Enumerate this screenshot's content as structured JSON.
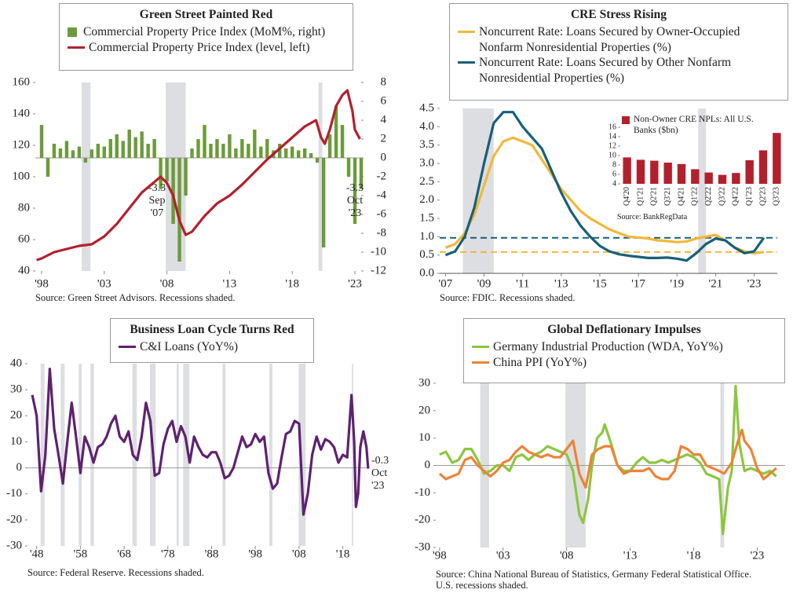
{
  "chart_data": [
    {
      "type": "combo",
      "title": "Green Street Painted Red",
      "xlim": [
        1997.5,
        2023.5
      ],
      "xticks": [
        {
          "value": 1998,
          "label": "'98"
        },
        {
          "value": 2003,
          "label": "'03"
        },
        {
          "value": 2008,
          "label": "'08"
        },
        {
          "value": 2013,
          "label": "'13"
        },
        {
          "value": 2018,
          "label": "'18"
        },
        {
          "value": 2023,
          "label": "'23"
        }
      ],
      "ylim": [
        40,
        160
      ],
      "yticks": [
        40,
        60,
        80,
        100,
        120,
        140,
        160
      ],
      "y2lim": [
        -12,
        8
      ],
      "y2ticks": [
        -12,
        -10,
        -8,
        -6,
        -4,
        -2,
        0,
        2,
        4,
        6,
        8
      ],
      "shaded_ranges": [
        [
          2001.2,
          2001.9
        ],
        [
          2007.9,
          2009.5
        ],
        [
          2020.1,
          2020.4
        ]
      ],
      "series": [
        {
          "name": "Commercial Property Price Index (MoM%, right)",
          "type": "bar",
          "axis": "y2",
          "color": "#6b9b3a",
          "x": [
            1998,
            1998.5,
            1999,
            1999.5,
            2000,
            2000.5,
            2001,
            2001.5,
            2002,
            2002.5,
            2003,
            2003.5,
            2004,
            2004.5,
            2005,
            2005.5,
            2006,
            2006.5,
            2007,
            2007.5,
            2008,
            2008.5,
            2009,
            2009.5,
            2010,
            2010.5,
            2011,
            2011.5,
            2012,
            2012.5,
            2013,
            2013.5,
            2014,
            2014.5,
            2015,
            2015.5,
            2016,
            2016.5,
            2017,
            2017.5,
            2018,
            2018.5,
            2019,
            2019.5,
            2020,
            2020.5,
            2021,
            2021.5,
            2022,
            2022.5,
            2023,
            2023.5
          ],
          "values": [
            3.5,
            -2,
            1.5,
            1,
            1.8,
            0.8,
            1.2,
            -0.5,
            0.9,
            1.5,
            1.2,
            2,
            2.5,
            1.8,
            3,
            2.2,
            2.8,
            1.5,
            2,
            -3.3,
            -2.5,
            -7,
            -11,
            -4,
            1,
            2,
            3.5,
            1.5,
            2,
            1.5,
            2.5,
            1,
            2,
            1.5,
            3,
            1.2,
            2,
            0.8,
            1.5,
            1,
            1.2,
            0.8,
            1,
            0.5,
            -0.5,
            -9.5,
            2.5,
            5.5,
            3.5,
            -2,
            -7,
            -3.3
          ]
        },
        {
          "name": "Commercial Property Price Index (level, left)",
          "type": "line",
          "color": "#b3202d",
          "x": [
            1997.6,
            1998,
            1999,
            2000,
            2001,
            2002,
            2003,
            2004,
            2005,
            2006,
            2007.5,
            2008,
            2008.5,
            2009,
            2009.5,
            2010,
            2011,
            2012,
            2013,
            2014,
            2015,
            2016,
            2017,
            2018,
            2019,
            2019.9,
            2020.3,
            2020.6,
            2021,
            2021.5,
            2022,
            2022.4,
            2022.8,
            2023,
            2023.4
          ],
          "values": [
            47,
            48,
            52,
            54,
            56,
            57,
            62,
            70,
            80,
            90,
            100,
            96,
            88,
            72,
            63,
            65,
            75,
            83,
            88,
            95,
            103,
            111,
            118,
            125,
            132,
            136,
            125,
            121,
            130,
            145,
            152,
            155,
            142,
            130,
            124
          ]
        }
      ],
      "annotations": [
        [
          "-3.3",
          "Sep",
          "'07"
        ],
        [
          "-3.3",
          "Oct",
          "'23"
        ]
      ],
      "source": [
        "Source: Green Street Advisors. Recessions shaded."
      ]
    },
    {
      "type": "line",
      "title": "CRE Stress Rising",
      "xlim": [
        2006.7,
        2024.2
      ],
      "xticks": [
        {
          "value": 2007,
          "label": "'07"
        },
        {
          "value": 2009,
          "label": "'09"
        },
        {
          "value": 2011,
          "label": "'11"
        },
        {
          "value": 2013,
          "label": "'13"
        },
        {
          "value": 2015,
          "label": "'15"
        },
        {
          "value": 2017,
          "label": "'17"
        },
        {
          "value": 2019,
          "label": "'19"
        },
        {
          "value": 2021,
          "label": "'21"
        },
        {
          "value": 2023,
          "label": "'23"
        }
      ],
      "ylim": [
        0,
        4.5
      ],
      "yticks": [
        {
          "value": 0,
          "label": "0.0"
        },
        0.5,
        {
          "value": 1,
          "label": "1.0"
        },
        1.5,
        {
          "value": 2,
          "label": "2.0"
        },
        2.5,
        {
          "value": 3,
          "label": "3.0"
        },
        3.5,
        {
          "value": 4,
          "label": "4.0"
        },
        4.5
      ],
      "shaded_ranges": [
        [
          2007.9,
          2009.5
        ],
        [
          2020.1,
          2020.5
        ]
      ],
      "reference_lines": [
        {
          "value": 0.97,
          "color": "#17607a"
        },
        {
          "value": 0.58,
          "color": "#f2b83a"
        }
      ],
      "x": [
        2007,
        2007.5,
        2008,
        2008.5,
        2009,
        2009.5,
        2010,
        2010.5,
        2011,
        2011.5,
        2012,
        2012.5,
        2013,
        2013.5,
        2014,
        2014.5,
        2015,
        2015.5,
        2016,
        2016.5,
        2017,
        2017.5,
        2018,
        2018.5,
        2019,
        2019.5,
        2020,
        2020.5,
        2021,
        2021.5,
        2022,
        2022.5,
        2023,
        2023.5
      ],
      "series": [
        {
          "name": "Noncurrent Rate: Loans Secured by Owner-Occupied Nonfarm Nonresidential Properties (%)",
          "color": "#f2b83a",
          "values": [
            0.7,
            0.8,
            1.1,
            1.6,
            2.4,
            3.2,
            3.6,
            3.7,
            3.6,
            3.5,
            3.1,
            2.7,
            2.3,
            2.0,
            1.7,
            1.5,
            1.35,
            1.2,
            1.1,
            1.0,
            0.98,
            0.95,
            0.9,
            0.88,
            0.85,
            0.87,
            0.95,
            1.0,
            1.05,
            0.9,
            0.7,
            0.6,
            0.55,
            0.58
          ]
        },
        {
          "name": "Noncurrent Rate: Loans Secured by Other Nonfarm Nonresidential Properties (%)",
          "color": "#17607a",
          "values": [
            0.5,
            0.6,
            1.0,
            1.8,
            3.0,
            4.1,
            4.4,
            4.4,
            4.0,
            3.7,
            3.4,
            2.8,
            2.2,
            1.7,
            1.3,
            1.0,
            0.75,
            0.6,
            0.52,
            0.48,
            0.45,
            0.42,
            0.42,
            0.43,
            0.4,
            0.35,
            0.55,
            0.8,
            0.95,
            0.9,
            0.7,
            0.55,
            0.6,
            0.97
          ]
        }
      ],
      "source": [
        "Source: FDIC. Recessions shaded."
      ]
    },
    {
      "type": "bar",
      "categories": [
        "Q4'20",
        "Q1'21",
        "Q2'21",
        "Q3'21",
        "Q4'21",
        "Q1'22",
        "Q2'22",
        "Q3'22",
        "Q4'22",
        "Q1'23",
        "Q2'23",
        "Q3'23"
      ],
      "ylim": [
        4,
        16
      ],
      "yticks": [
        4,
        6,
        8,
        10,
        12,
        14,
        16
      ],
      "series": [
        {
          "name": "Non-Owner CRE NPLs: All U.S. Banks ($bn)",
          "color": "#b3202d",
          "values": [
            9.6,
            9.1,
            8.9,
            8.5,
            8.2,
            7.1,
            6.4,
            5.9,
            6.3,
            9.0,
            11.1,
            14.8
          ]
        }
      ],
      "source": [
        "Source: BankRegData"
      ]
    },
    {
      "type": "line",
      "title": "Business Loan Cycle Turns Red",
      "xlim": [
        1945.9,
        2024
      ],
      "xticks": [
        {
          "value": 1948,
          "label": "'48"
        },
        {
          "value": 1958,
          "label": "'58"
        },
        {
          "value": 1968,
          "label": "'68"
        },
        {
          "value": 1978,
          "label": "'78"
        },
        {
          "value": 1988,
          "label": "'88"
        },
        {
          "value": 1998,
          "label": "'98"
        },
        {
          "value": 2008,
          "label": "'08"
        },
        {
          "value": 2018,
          "label": "'18"
        }
      ],
      "ylim": [
        -30,
        40
      ],
      "yticks": [
        -30,
        -20,
        -10,
        0,
        10,
        20,
        30,
        40
      ],
      "shaded_ranges": [
        [
          1948.9,
          1949.8
        ],
        [
          1953.5,
          1954.4
        ],
        [
          1957.6,
          1958.3
        ],
        [
          1960.3,
          1961.1
        ],
        [
          1969.9,
          1970.9
        ],
        [
          1973.9,
          1975.2
        ],
        [
          1980.0,
          1980.5
        ],
        [
          1981.5,
          1982.9
        ],
        [
          1990.5,
          1991.2
        ],
        [
          2001.2,
          2001.9
        ],
        [
          2007.9,
          2009.5
        ],
        [
          2020.1,
          2020.4
        ]
      ],
      "x": [
        1947,
        1948,
        1949,
        1950,
        1951,
        1952,
        1953,
        1954,
        1955,
        1956,
        1957,
        1958,
        1959,
        1960,
        1961,
        1962,
        1963,
        1964,
        1965,
        1966,
        1967,
        1968,
        1969,
        1970,
        1971,
        1972,
        1973,
        1974,
        1975,
        1976,
        1977,
        1978,
        1979,
        1980,
        1981,
        1982,
        1983,
        1984,
        1985,
        1986,
        1987,
        1988,
        1989,
        1990,
        1991,
        1992,
        1993,
        1994,
        1995,
        1996,
        1997,
        1998,
        1999,
        2000,
        2001,
        2002,
        2003,
        2004,
        2005,
        2006,
        2007,
        2008,
        2009,
        2010,
        2011,
        2012,
        2013,
        2014,
        2015,
        2016,
        2017,
        2018,
        2019,
        2020,
        2020.6,
        2021,
        2021.5,
        2022,
        2022.7,
        2023.4,
        2023.8
      ],
      "series": [
        {
          "name": "C&I Loans (YoY%)",
          "color": "#5e2170",
          "values": [
            28,
            20,
            -9,
            5,
            38,
            15,
            5,
            -6,
            10,
            25,
            12,
            -2,
            12,
            8,
            2,
            8,
            9,
            12,
            17,
            20,
            12,
            10,
            14,
            5,
            3,
            12,
            25,
            18,
            -3,
            -2,
            9,
            15,
            18,
            10,
            16,
            12,
            2,
            12,
            8,
            5,
            4,
            6,
            6,
            2,
            -4,
            -3,
            0,
            6,
            12,
            8,
            9,
            13,
            10,
            12,
            -2,
            -8,
            -6,
            4,
            13,
            14,
            18,
            17,
            -18,
            -10,
            5,
            12,
            7,
            11,
            10,
            8,
            2,
            5,
            4,
            28,
            10,
            -15,
            -10,
            8,
            14,
            8,
            -0.3
          ]
        }
      ],
      "annotations": [
        [
          "-0.3",
          "Oct",
          "'23"
        ]
      ],
      "source": [
        "Source: Federal Reserve. Recessions shaded."
      ]
    },
    {
      "type": "line",
      "title": "Global Deflationary Impulses",
      "xlim": [
        1997.7,
        2025.2
      ],
      "xticks": [
        {
          "value": 1998,
          "label": "'98"
        },
        {
          "value": 2003,
          "label": "'03"
        },
        {
          "value": 2008,
          "label": "'08"
        },
        {
          "value": 2013,
          "label": "'13"
        },
        {
          "value": 2018,
          "label": "'18"
        },
        {
          "value": 2023,
          "label": "'23"
        }
      ],
      "ylim": [
        -30,
        30
      ],
      "yticks": [
        -30,
        -20,
        -10,
        0,
        10,
        20,
        30
      ],
      "shaded_ranges": [
        [
          2001.2,
          2001.9
        ],
        [
          2007.9,
          2009.5
        ],
        [
          2020.1,
          2020.4
        ]
      ],
      "series": [
        {
          "name": "Germany Industrial Production (WDA, YoY%)",
          "color": "#8cc63f",
          "x": [
            1998,
            1998.5,
            1999,
            1999.5,
            2000,
            2000.5,
            2001,
            2001.5,
            2002,
            2002.5,
            2003,
            2003.5,
            2004,
            2004.5,
            2005,
            2005.5,
            2006,
            2006.5,
            2007,
            2007.5,
            2008,
            2008.5,
            2009,
            2009.3,
            2009.7,
            2010,
            2010.4,
            2010.8,
            2011,
            2011.5,
            2012,
            2012.5,
            2013,
            2013.5,
            2014,
            2014.5,
            2015,
            2015.5,
            2016,
            2016.5,
            2017,
            2017.5,
            2018,
            2018.5,
            2019,
            2019.5,
            2020,
            2020.3,
            2020.7,
            2021,
            2021.3,
            2021.6,
            2022,
            2022.5,
            2023,
            2023.5,
            2024,
            2024.5
          ],
          "values": [
            4,
            5,
            1,
            2,
            6,
            6,
            2,
            -3,
            -2,
            0,
            0,
            -2,
            3,
            4,
            2,
            4,
            5,
            7,
            6,
            5,
            4,
            -2,
            -18,
            -21,
            -12,
            0,
            10,
            12,
            15,
            8,
            0,
            -2,
            -2,
            1,
            3,
            1,
            1,
            2,
            1,
            2,
            3,
            4,
            3,
            1,
            -3,
            -4,
            -5,
            -25,
            -8,
            -2,
            29,
            8,
            -2,
            -1,
            -2,
            -3,
            -2,
            -4
          ]
        },
        {
          "name": "China PPI (YoY%)",
          "color": "#ec8437",
          "x": [
            1998,
            1998.5,
            1999,
            1999.5,
            2000,
            2000.5,
            2001,
            2001.5,
            2002,
            2002.5,
            2003,
            2003.5,
            2004,
            2004.5,
            2005,
            2005.5,
            2006,
            2006.5,
            2007,
            2007.5,
            2008,
            2008.5,
            2009,
            2009.5,
            2010,
            2010.5,
            2011,
            2011.5,
            2012,
            2012.5,
            2013,
            2013.5,
            2014,
            2014.5,
            2015,
            2015.5,
            2016,
            2016.5,
            2017,
            2017.5,
            2018,
            2018.5,
            2019,
            2019.5,
            2020,
            2020.4,
            2021,
            2021.5,
            2021.8,
            2022,
            2022.5,
            2023,
            2023.5,
            2024,
            2024.5
          ],
          "values": [
            -3,
            -5,
            -4,
            -3,
            2,
            3,
            0,
            -2,
            -4,
            -2,
            1,
            2,
            5,
            7,
            5,
            4,
            3,
            4,
            3,
            3,
            6,
            9,
            -3,
            -8,
            4,
            6,
            7,
            7,
            0,
            -3,
            -2,
            -2,
            -2,
            -1,
            -4,
            -5,
            -5,
            -2,
            7,
            6,
            4,
            4,
            0,
            -1,
            -2,
            -3,
            1,
            9,
            13,
            9,
            6,
            -1,
            -5,
            -3,
            -1
          ]
        }
      ],
      "source": [
        "Source: China National Bureau of Statistics, Germany Federal Statistical Office.",
        "U.S. recessions shaded."
      ]
    }
  ]
}
